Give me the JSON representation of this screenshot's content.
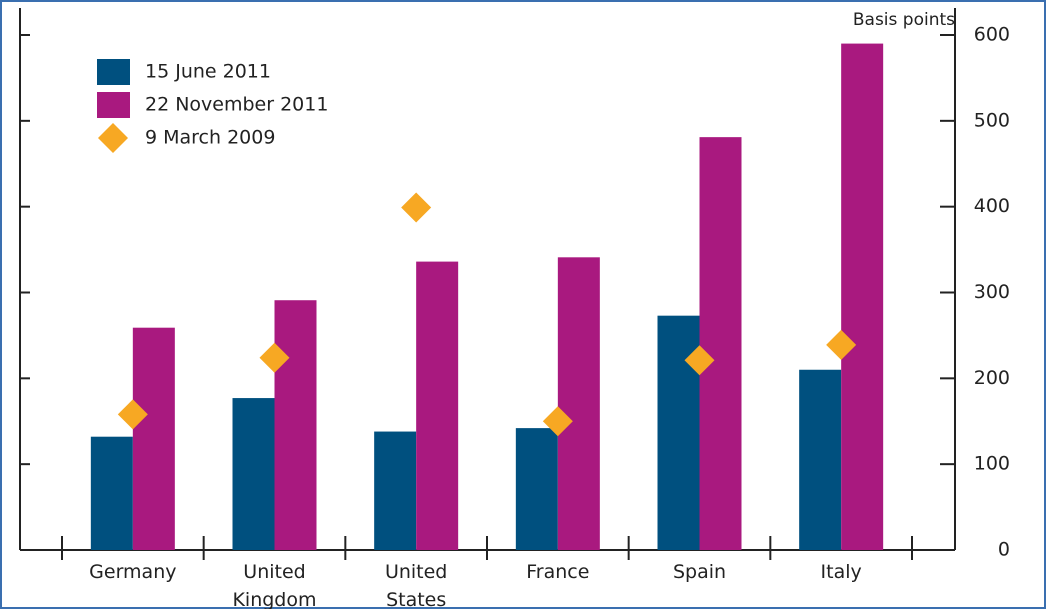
{
  "chart_data": {
    "type": "bar",
    "y_label": "Basis points",
    "categories": [
      "Germany",
      "United\nKingdom",
      "United\nStates",
      "France",
      "Spain",
      "Italy"
    ],
    "series": [
      {
        "name": "15 June 2011",
        "color": "#00507f",
        "marker": "bar",
        "values": [
          132,
          177,
          138,
          142,
          273,
          210
        ]
      },
      {
        "name": "22 November 2011",
        "color": "#a9197f",
        "marker": "bar",
        "values": [
          259,
          291,
          336,
          341,
          481,
          590
        ]
      },
      {
        "name": "9 March 2009",
        "color": "#f7a823",
        "marker": "diamond",
        "values": [
          158,
          224,
          399,
          150,
          221,
          239
        ]
      }
    ],
    "ylim": [
      0,
      600
    ],
    "yticks": [
      0,
      100,
      200,
      300,
      400,
      500,
      600
    ],
    "y_axis_side": "right",
    "legend": "upper left"
  }
}
